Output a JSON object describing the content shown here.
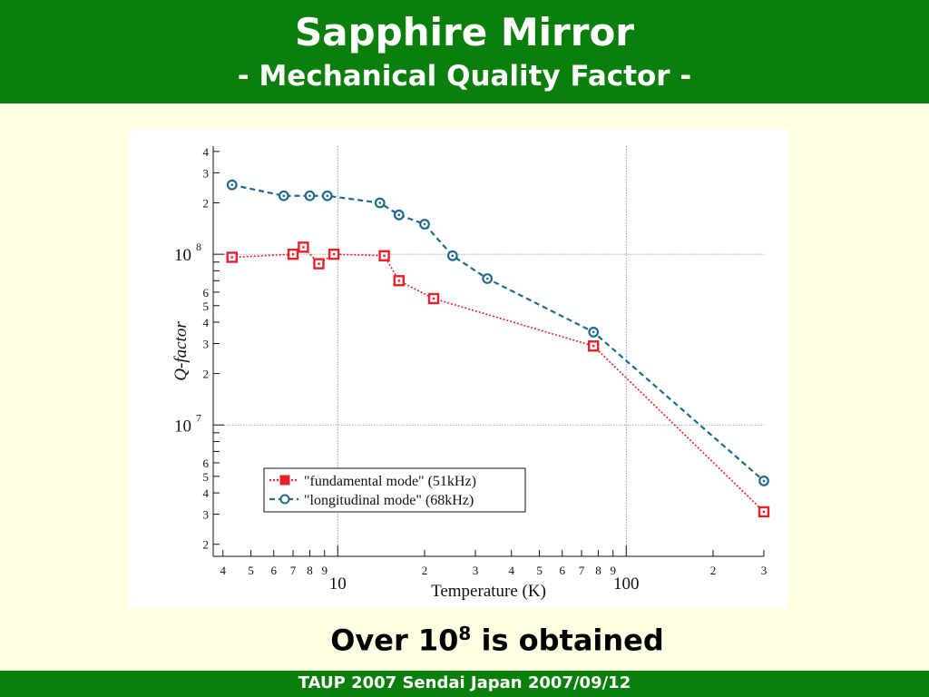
{
  "header": {
    "title": "Sapphire Mirror",
    "subtitle": "- Mechanical Quality Factor -"
  },
  "caption": {
    "text_main": "Over 10",
    "text_sup": "8",
    "text_rest": " is obtained"
  },
  "footer": {
    "text": "TAUP 2007 Sendai Japan 2007/09/12"
  },
  "colors": {
    "banner": "#0b7f0b",
    "background": "#fefee3",
    "fundamental": "#e8202a",
    "longitudinal": "#1e6a8c",
    "grid": "#6a8fd0"
  },
  "chart_data": {
    "type": "line",
    "xlabel": "Temperature (K)",
    "ylabel": "Q-factor",
    "xscale": "log",
    "yscale": "log",
    "xlim": [
      3.7,
      300
    ],
    "ylim": [
      1700000.0,
      430000000.0
    ],
    "grid": true,
    "legend_position": "lower-left",
    "x_major_ticks": [
      {
        "value": 10,
        "label": "10"
      },
      {
        "value": 100,
        "label": "100"
      }
    ],
    "x_minor_ticks": [
      {
        "value": 4,
        "label": "4"
      },
      {
        "value": 5,
        "label": "5"
      },
      {
        "value": 6,
        "label": "6"
      },
      {
        "value": 7,
        "label": "7"
      },
      {
        "value": 8,
        "label": "8"
      },
      {
        "value": 9,
        "label": "9"
      },
      {
        "value": 20,
        "label": "2"
      },
      {
        "value": 30,
        "label": "3"
      },
      {
        "value": 40,
        "label": "4"
      },
      {
        "value": 50,
        "label": "5"
      },
      {
        "value": 60,
        "label": "6"
      },
      {
        "value": 70,
        "label": "7"
      },
      {
        "value": 80,
        "label": "8"
      },
      {
        "value": 90,
        "label": "9"
      },
      {
        "value": 200,
        "label": "2"
      },
      {
        "value": 300,
        "label": "3"
      }
    ],
    "y_major_ticks": [
      {
        "value": 10000000.0,
        "base": "10",
        "exp": "7"
      },
      {
        "value": 100000000.0,
        "base": "10",
        "exp": "8"
      }
    ],
    "y_minor_ticks": [
      {
        "value": 2000000.0,
        "label": "2"
      },
      {
        "value": 3000000.0,
        "label": "3"
      },
      {
        "value": 4000000.0,
        "label": "4"
      },
      {
        "value": 5000000.0,
        "label": "5"
      },
      {
        "value": 6000000.0,
        "label": "6"
      },
      {
        "value": 20000000.0,
        "label": "2"
      },
      {
        "value": 30000000.0,
        "label": "3"
      },
      {
        "value": 40000000.0,
        "label": "4"
      },
      {
        "value": 50000000.0,
        "label": "5"
      },
      {
        "value": 60000000.0,
        "label": "6"
      },
      {
        "value": 200000000.0,
        "label": "2"
      },
      {
        "value": 300000000.0,
        "label": "3"
      },
      {
        "value": 400000000.0,
        "label": "4"
      }
    ],
    "y_unlabeled_ticks": [
      7000000.0,
      8000000.0,
      9000000.0,
      70000000.0,
      80000000.0,
      90000000.0
    ],
    "series": [
      {
        "name": "\"fundamental mode\" (51kHz)",
        "marker": "square",
        "line": "dotted",
        "color": "#e8202a",
        "x": [
          4.3,
          7.0,
          7.6,
          8.6,
          9.7,
          14.5,
          16.3,
          21.5,
          77,
          300
        ],
        "y": [
          96000000.0,
          100000000.0,
          110000000.0,
          88000000.0,
          100000000.0,
          98000000.0,
          70000000.0,
          55000000.0,
          29000000.0,
          3100000.0
        ]
      },
      {
        "name": "\"longitudinal mode\" (68kHz)",
        "marker": "circle",
        "line": "dashed",
        "color": "#1e6a8c",
        "x": [
          4.3,
          6.5,
          8.0,
          9.2,
          14.0,
          16.3,
          20.0,
          25.0,
          33.0,
          77,
          300
        ],
        "y": [
          255000000.0,
          220000000.0,
          220000000.0,
          220000000.0,
          200000000.0,
          170000000.0,
          150000000.0,
          98000000.0,
          72000000.0,
          35000000.0,
          4700000.0
        ]
      }
    ]
  }
}
